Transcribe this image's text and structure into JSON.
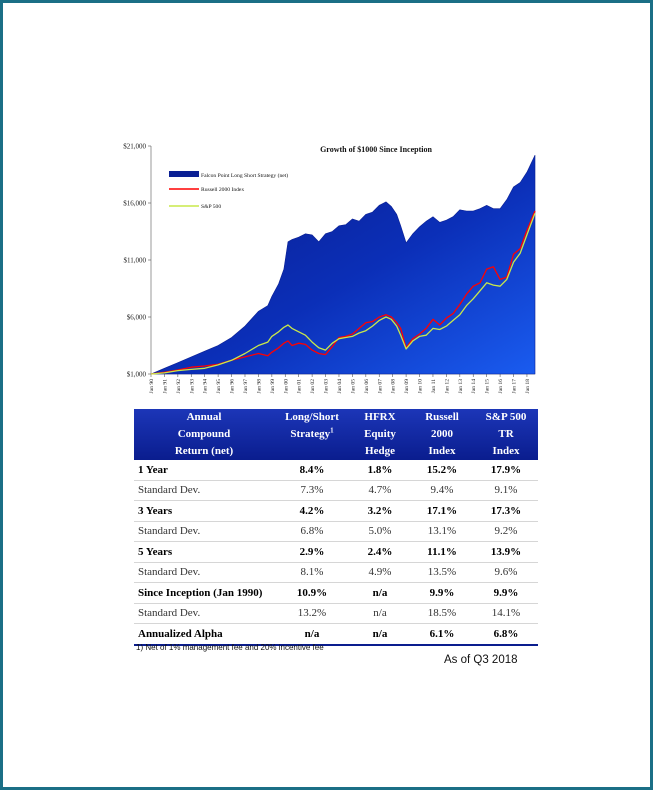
{
  "chart_data": {
    "type": "area",
    "title": "Growth of $1000 Since Inception",
    "xlabel": "",
    "ylabel": "",
    "ylim": [
      1000,
      21000
    ],
    "y_ticks": [
      "$1,000",
      "$6,000",
      "$11,000",
      "$16,000",
      "$21,000"
    ],
    "y_tick_values": [
      1000,
      6000,
      11000,
      16000,
      21000
    ],
    "x_ticks": [
      "Jan 90",
      "Jan 91",
      "Jan 92",
      "Jan 93",
      "Jan 94",
      "Jan 95",
      "Jan 96",
      "Jan 97",
      "Jan 98",
      "Jan 99",
      "Jan 00",
      "Jan 01",
      "Jan 02",
      "Jan 03",
      "Jan 04",
      "Jan 05",
      "Jan 06",
      "Jan 07",
      "Jan 08",
      "Jan 09",
      "Jan 10",
      "Jan 11",
      "Jan 12",
      "Jan 13",
      "Jan 14",
      "Jan 15",
      "Jan 16",
      "Jan 17",
      "Jan 18"
    ],
    "legend_position": "top-left",
    "grid": false,
    "x": [
      1990.0,
      1991.0,
      1992.0,
      1993.0,
      1994.0,
      1995.0,
      1996.0,
      1997.0,
      1998.0,
      1998.7,
      1999.0,
      1999.5,
      1999.9,
      2000.2,
      2000.5,
      2001.0,
      2001.5,
      2002.0,
      2002.5,
      2003.0,
      2003.5,
      2004.0,
      2004.5,
      2005.0,
      2005.5,
      2006.0,
      2006.5,
      2007.0,
      2007.5,
      2007.9,
      2008.3,
      2008.6,
      2009.0,
      2009.5,
      2010.0,
      2010.5,
      2011.0,
      2011.5,
      2012.0,
      2012.5,
      2013.0,
      2013.5,
      2014.0,
      2014.5,
      2015.0,
      2015.5,
      2016.0,
      2016.5,
      2017.0,
      2017.5,
      2018.0,
      2018.6
    ],
    "series": [
      {
        "name": "Falcon Point Long Short Strategy (net)",
        "color": "#0a1f94",
        "style": "area",
        "values": [
          1000,
          1500,
          2000,
          2500,
          3000,
          3500,
          4200,
          5200,
          6500,
          7000,
          7800,
          8900,
          10200,
          12600,
          12800,
          13000,
          13300,
          13200,
          12600,
          13300,
          13500,
          14000,
          14100,
          14600,
          14400,
          15000,
          15200,
          15800,
          16100,
          15700,
          15000,
          14000,
          12500,
          13300,
          13900,
          14400,
          14800,
          14300,
          14500,
          14800,
          15400,
          15300,
          15300,
          15500,
          15800,
          15500,
          15500,
          16300,
          17400,
          17800,
          18700,
          20200
        ]
      },
      {
        "name": "Russell 2000 Index",
        "color": "#ff0000",
        "style": "line",
        "values": [
          1000,
          1150,
          1350,
          1600,
          1700,
          1850,
          2200,
          2500,
          2800,
          2600,
          2900,
          3300,
          3700,
          3900,
          3500,
          3700,
          3600,
          3100,
          2800,
          2700,
          3400,
          4200,
          4300,
          4500,
          5000,
          5500,
          5600,
          6000,
          6200,
          6000,
          5500,
          5000,
          3300,
          4100,
          4500,
          5000,
          5800,
          5300,
          5900,
          6300,
          7100,
          8000,
          8700,
          9000,
          10200,
          10400,
          9300,
          9500,
          11500,
          12000,
          13600,
          15300
        ]
      },
      {
        "name": "S&P 500",
        "color": "#c9e84a",
        "style": "line",
        "values": [
          1000,
          1100,
          1300,
          1400,
          1500,
          1800,
          2200,
          2800,
          3500,
          3800,
          4300,
          4700,
          5100,
          5300,
          5000,
          4700,
          4400,
          3800,
          3300,
          3100,
          3700,
          4100,
          4200,
          4300,
          4600,
          4800,
          5200,
          5700,
          6000,
          5800,
          5200,
          4400,
          3200,
          3900,
          4300,
          4400,
          5000,
          4900,
          5200,
          5700,
          6200,
          7000,
          7600,
          8300,
          9000,
          8800,
          8700,
          9300,
          10800,
          11600,
          13200,
          15100
        ]
      }
    ]
  },
  "table": {
    "headers": [
      [
        "Annual",
        "Compound",
        "Return (net)"
      ],
      [
        "Long/Short",
        "Strategy",
        ""
      ],
      [
        "HFRX",
        "Equity",
        "Hedge"
      ],
      [
        "Russell",
        "2000",
        "Index"
      ],
      [
        "S&P 500",
        "TR",
        "Index"
      ]
    ],
    "header_superscript": "1",
    "rows": [
      {
        "label": "1 Year",
        "type": "major",
        "values": [
          "8.4%",
          "1.8%",
          "15.2%",
          "17.9%"
        ]
      },
      {
        "label": "Standard Dev.",
        "type": "minor",
        "values": [
          "7.3%",
          "4.7%",
          "9.4%",
          "9.1%"
        ]
      },
      {
        "label": "3 Years",
        "type": "major",
        "values": [
          "4.2%",
          "3.2%",
          "17.1%",
          "17.3%"
        ]
      },
      {
        "label": "Standard Dev.",
        "type": "minor",
        "values": [
          "6.8%",
          "5.0%",
          "13.1%",
          "9.2%"
        ]
      },
      {
        "label": "5 Years",
        "type": "major",
        "values": [
          "2.9%",
          "2.4%",
          "11.1%",
          "13.9%"
        ]
      },
      {
        "label": "Standard Dev.",
        "type": "minor",
        "values": [
          "8.1%",
          "4.9%",
          "13.5%",
          "9.6%"
        ]
      },
      {
        "label": "Since Inception (Jan 1990)",
        "type": "major",
        "values": [
          "10.9%",
          "n/a",
          "9.9%",
          "9.9%"
        ]
      },
      {
        "label": "Standard Dev.",
        "type": "minor",
        "values": [
          "13.2%",
          "n/a",
          "18.5%",
          "14.1%"
        ]
      },
      {
        "label": "Annualized Alpha",
        "type": "major",
        "values": [
          "n/a",
          "n/a",
          "6.1%",
          "6.8%"
        ]
      }
    ]
  },
  "footnote": "1) Net of 1% management fee and 20% incentive fee",
  "as_of": "As of Q3 2018"
}
